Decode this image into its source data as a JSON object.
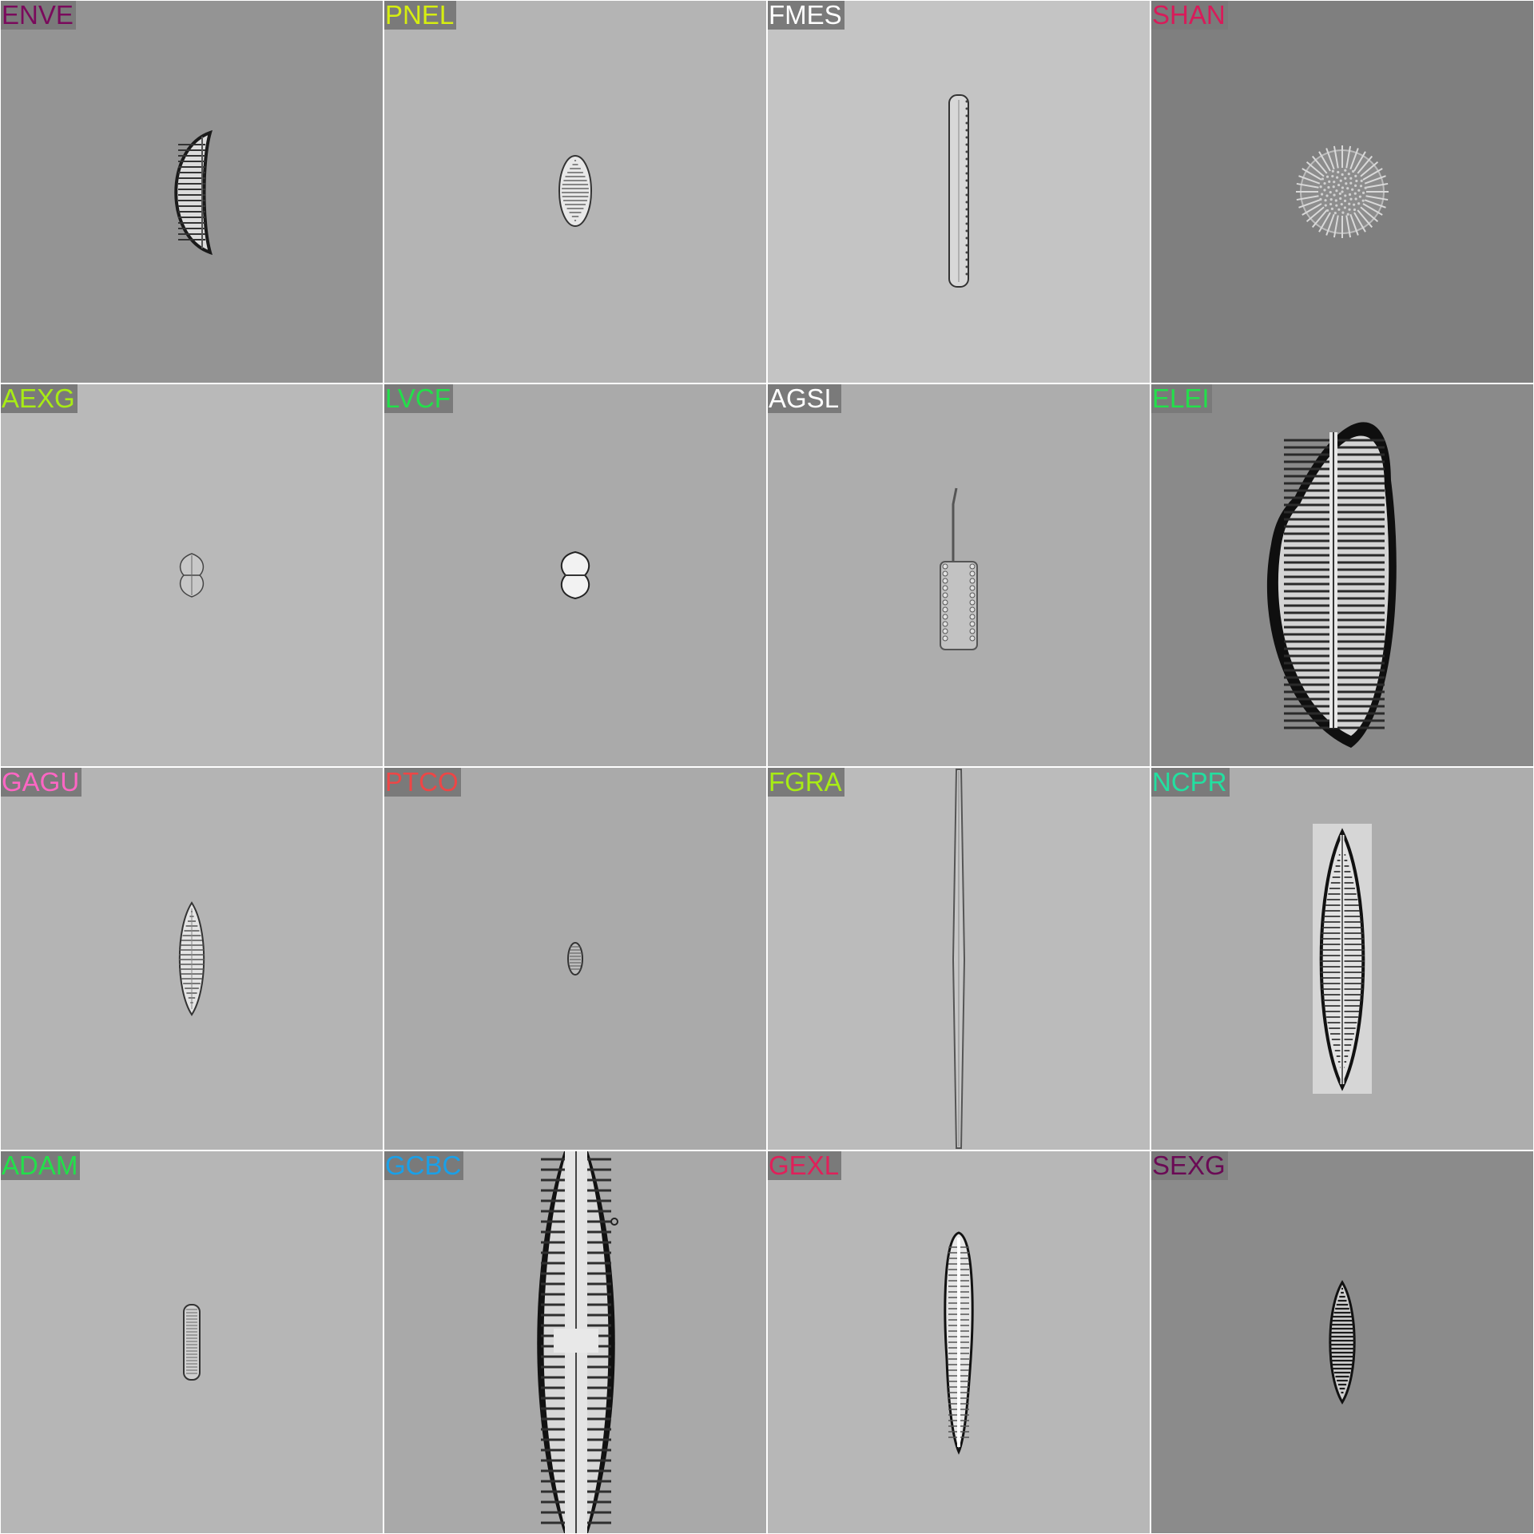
{
  "tiles": [
    {
      "code": "ENVE",
      "color": "#7a0a5c",
      "bg": "#949494",
      "shape": "crescent"
    },
    {
      "code": "PNEL",
      "color": "#d6ee10",
      "bg": "#b4b4b4",
      "shape": "small-oval"
    },
    {
      "code": "FMES",
      "color": "#ffffff",
      "bg": "#c4c4c4",
      "shape": "long-rod"
    },
    {
      "code": "SHAN",
      "color": "#d81b5a",
      "bg": "#7f7f7f",
      "shape": "disc"
    },
    {
      "code": "AEXG",
      "color": "#a8ec14",
      "bg": "#b9b9b9",
      "shape": "tiny-cross"
    },
    {
      "code": "LVCF",
      "color": "#22e04a",
      "bg": "#aaaaaa",
      "shape": "small-cross"
    },
    {
      "code": "AGSL",
      "color": "#ffffff",
      "bg": "#adadad",
      "shape": "girdle-rect"
    },
    {
      "code": "ELEI",
      "color": "#22e04a",
      "bg": "#8a8a8a",
      "shape": "large-cymbelloid"
    },
    {
      "code": "GAGU",
      "color": "#ff66c4",
      "bg": "#b4b4b4",
      "shape": "lanceolate"
    },
    {
      "code": "PTCO",
      "color": "#ee4646",
      "bg": "#aaaaaa",
      "shape": "tiny-oval"
    },
    {
      "code": "FGRA",
      "color": "#a8ec14",
      "bg": "#bbbbbb",
      "shape": "needle"
    },
    {
      "code": "NCPR",
      "color": "#22e0a0",
      "bg": "#adadad",
      "shape": "navicula"
    },
    {
      "code": "ADAM",
      "color": "#22e04a",
      "bg": "#b6b6b6",
      "shape": "small-rod"
    },
    {
      "code": "GCBC",
      "color": "#1aa0e8",
      "bg": "#a9a9a9",
      "shape": "large-fusiform"
    },
    {
      "code": "GEXL",
      "color": "#e0205a",
      "bg": "#b7b7b7",
      "shape": "gomphonema"
    },
    {
      "code": "SEXG",
      "color": "#6a0a55",
      "bg": "#8b8b8b",
      "shape": "dark-lanceolate"
    }
  ]
}
